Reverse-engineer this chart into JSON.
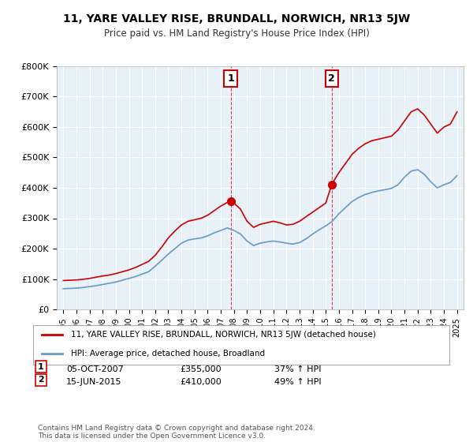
{
  "title": "11, YARE VALLEY RISE, BRUNDALL, NORWICH, NR13 5JW",
  "subtitle": "Price paid vs. HM Land Registry's House Price Index (HPI)",
  "ylabel_ticks": [
    "£0",
    "£100K",
    "£200K",
    "£300K",
    "£400K",
    "£500K",
    "£600K",
    "£700K",
    "£800K"
  ],
  "ytick_vals": [
    0,
    100000,
    200000,
    300000,
    400000,
    500000,
    600000,
    700000,
    800000
  ],
  "ylim": [
    0,
    800000
  ],
  "xlim_start": 1994.5,
  "xlim_end": 2025.5,
  "background_color": "#ffffff",
  "plot_bg_color": "#e8f0f8",
  "grid_color": "#ffffff",
  "red_color": "#cc0000",
  "blue_color": "#6699cc",
  "transaction1": {
    "year": 2007.75,
    "price": 355000,
    "label": "1",
    "hpi_pct": "37%",
    "date": "05-OCT-2007"
  },
  "transaction2": {
    "year": 2015.45,
    "price": 410000,
    "label": "2",
    "hpi_pct": "49%",
    "date": "15-JUN-2015"
  },
  "legend_line1": "11, YARE VALLEY RISE, BRUNDALL, NORWICH, NR13 5JW (detached house)",
  "legend_line2": "HPI: Average price, detached house, Broadland",
  "table_row1": [
    "1",
    "05-OCT-2007",
    "£355,000",
    "37% ↑ HPI"
  ],
  "table_row2": [
    "2",
    "15-JUN-2015",
    "£410,000",
    "49% ↑ HPI"
  ],
  "footer": "Contains HM Land Registry data © Crown copyright and database right 2024.\nThis data is licensed under the Open Government Licence v3.0.",
  "hpi_red_data": {
    "years": [
      1995,
      1995.5,
      1996,
      1996.5,
      1997,
      1997.5,
      1998,
      1998.5,
      1999,
      1999.5,
      2000,
      2000.5,
      2001,
      2001.5,
      2002,
      2002.5,
      2003,
      2003.5,
      2004,
      2004.5,
      2005,
      2005.5,
      2006,
      2006.5,
      2007,
      2007.5,
      2007.75,
      2008,
      2008.5,
      2009,
      2009.5,
      2010,
      2010.5,
      2011,
      2011.5,
      2012,
      2012.5,
      2013,
      2013.5,
      2014,
      2014.5,
      2015,
      2015.45,
      2015.5,
      2016,
      2016.5,
      2017,
      2017.5,
      2018,
      2018.5,
      2019,
      2019.5,
      2020,
      2020.5,
      2021,
      2021.5,
      2022,
      2022.5,
      2023,
      2023.5,
      2024,
      2024.5,
      2025
    ],
    "prices": [
      95000,
      96000,
      97000,
      99000,
      102000,
      106000,
      110000,
      113000,
      118000,
      124000,
      130000,
      138000,
      148000,
      158000,
      178000,
      205000,
      235000,
      258000,
      278000,
      290000,
      295000,
      300000,
      310000,
      325000,
      340000,
      352000,
      355000,
      350000,
      330000,
      290000,
      270000,
      280000,
      285000,
      290000,
      285000,
      278000,
      280000,
      290000,
      305000,
      320000,
      335000,
      350000,
      410000,
      415000,
      450000,
      480000,
      510000,
      530000,
      545000,
      555000,
      560000,
      565000,
      570000,
      590000,
      620000,
      650000,
      660000,
      640000,
      610000,
      580000,
      600000,
      610000,
      650000
    ]
  },
  "hpi_blue_data": {
    "years": [
      1995,
      1995.5,
      1996,
      1996.5,
      1997,
      1997.5,
      1998,
      1998.5,
      1999,
      1999.5,
      2000,
      2000.5,
      2001,
      2001.5,
      2002,
      2002.5,
      2003,
      2003.5,
      2004,
      2004.5,
      2005,
      2005.5,
      2006,
      2006.5,
      2007,
      2007.5,
      2008,
      2008.5,
      2009,
      2009.5,
      2010,
      2010.5,
      2011,
      2011.5,
      2012,
      2012.5,
      2013,
      2013.5,
      2014,
      2014.5,
      2015,
      2015.5,
      2016,
      2016.5,
      2017,
      2017.5,
      2018,
      2018.5,
      2019,
      2019.5,
      2020,
      2020.5,
      2021,
      2021.5,
      2022,
      2022.5,
      2023,
      2023.5,
      2024,
      2024.5,
      2025
    ],
    "prices": [
      68000,
      69000,
      70000,
      72000,
      75000,
      78000,
      82000,
      86000,
      90000,
      96000,
      102000,
      108000,
      116000,
      124000,
      142000,
      162000,
      182000,
      200000,
      218000,
      228000,
      232000,
      235000,
      242000,
      252000,
      260000,
      268000,
      260000,
      248000,
      225000,
      210000,
      218000,
      222000,
      225000,
      222000,
      218000,
      215000,
      220000,
      232000,
      248000,
      262000,
      275000,
      290000,
      315000,
      335000,
      355000,
      368000,
      378000,
      385000,
      390000,
      394000,
      398000,
      410000,
      435000,
      455000,
      460000,
      445000,
      420000,
      400000,
      410000,
      418000,
      440000
    ]
  }
}
